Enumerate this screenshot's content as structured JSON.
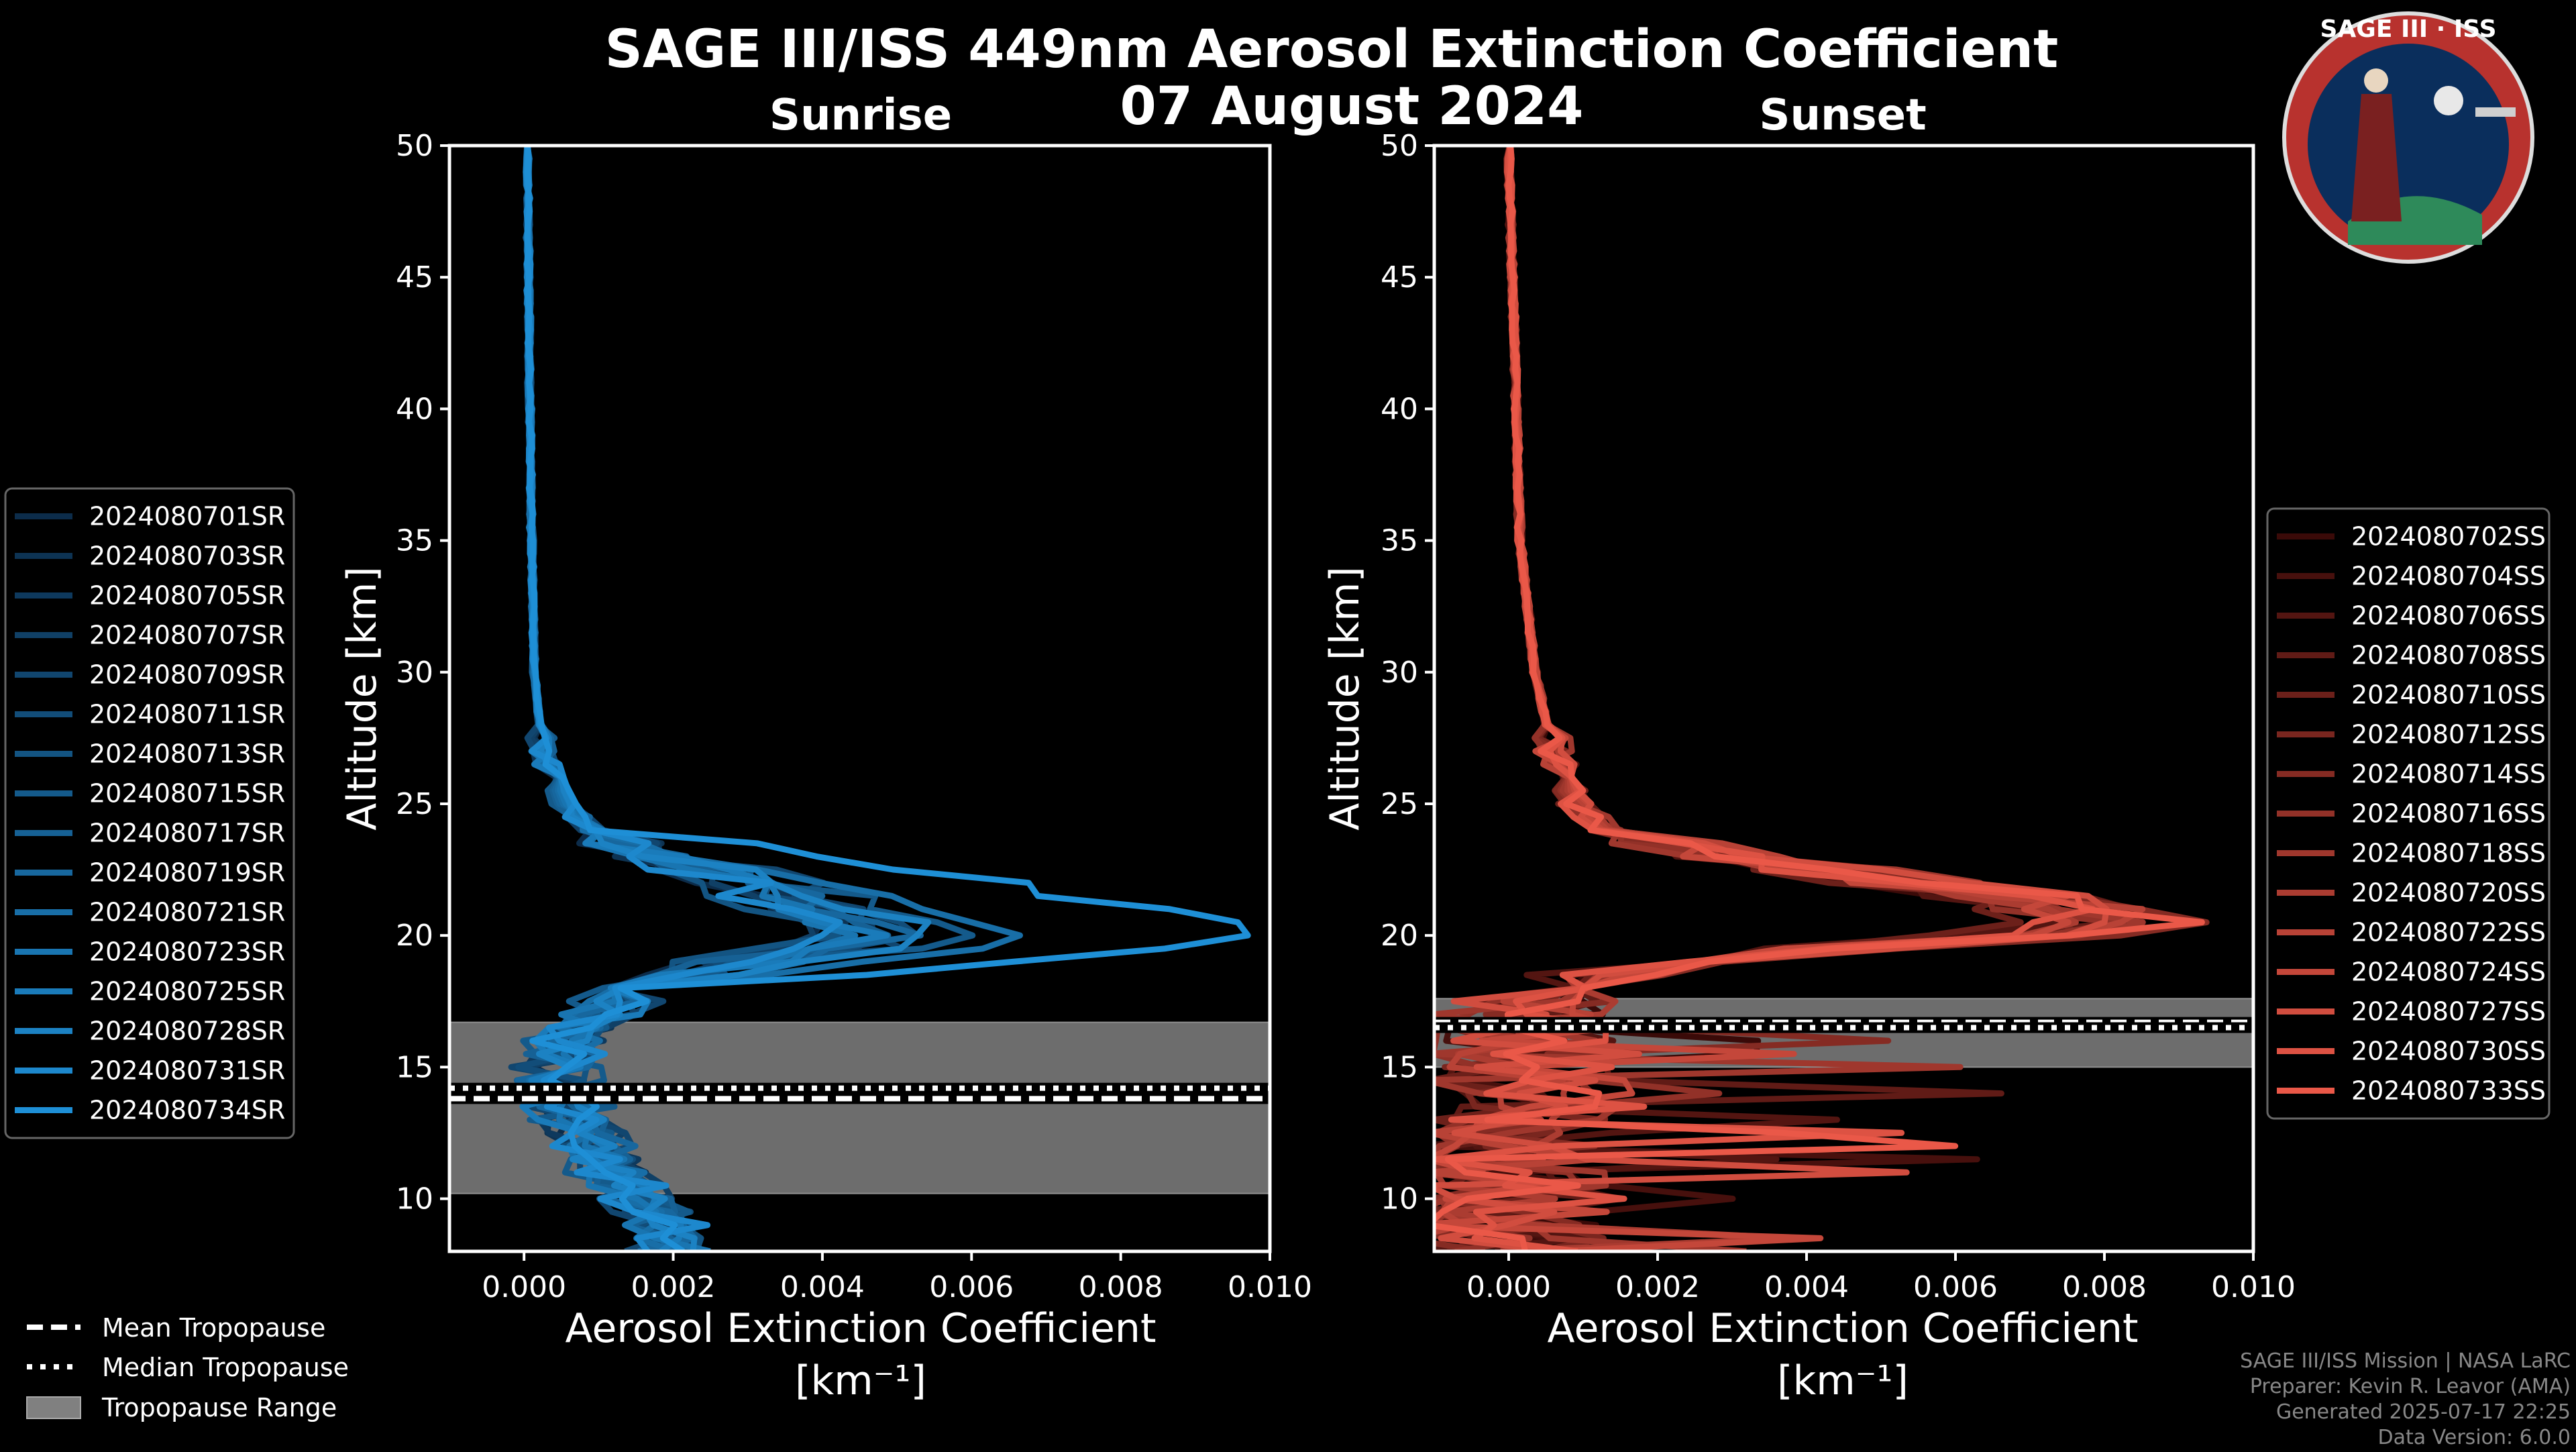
{
  "figure": {
    "title_line1": "SAGE III/ISS 449nm Aerosol Extinction Coefficient",
    "title_line2": "07 August 2024",
    "logo": {
      "text": "SAGE III · ISS"
    },
    "credits": [
      "SAGE III/ISS Mission | NASA LaRC",
      "Preparer: Kevin R. Leavor (AMA)",
      "Generated 2025-07-17 22:25",
      "Data Version: 6.0.0"
    ],
    "common_legend": [
      "Mean Tropopause",
      "Median Tropopause",
      "Tropopause Range"
    ]
  },
  "colors": {
    "sunrise_start": "#0c2c4a",
    "sunrise_end": "#1e8fd6",
    "sunset_start": "#3a0a08",
    "sunset_end": "#ea5848",
    "tropo_band": "#808080",
    "background": "#000000"
  },
  "chart_data": [
    {
      "type": "line",
      "title": "Sunrise",
      "xlabel": "Aerosol Extinction Coefficient",
      "xlabel_unit": "[km⁻¹]",
      "ylabel": "Altitude [km]",
      "xlim": [
        -0.001,
        0.01
      ],
      "ylim": [
        8,
        50
      ],
      "xticks": [
        0.0,
        0.002,
        0.004,
        0.006,
        0.008,
        0.01
      ],
      "xtick_labels": [
        "0.000",
        "0.002",
        "0.004",
        "0.006",
        "0.008",
        "0.010"
      ],
      "yticks": [
        10,
        15,
        20,
        25,
        30,
        35,
        40,
        45,
        50
      ],
      "tropopause": {
        "mean": 13.8,
        "median": 14.2,
        "range": [
          10.2,
          16.7
        ]
      },
      "base_profile": {
        "altitude": [
          50,
          45,
          40,
          35,
          30,
          27,
          25,
          24,
          23,
          22,
          21,
          20.5,
          20,
          19.5,
          19,
          18,
          17,
          16,
          15,
          14,
          13,
          12,
          11,
          10,
          9,
          8
        ],
        "extinction": [
          5e-05,
          6e-05,
          8e-05,
          0.0001,
          0.00014,
          0.00025,
          0.00055,
          0.0009,
          0.0018,
          0.0032,
          0.004,
          0.0046,
          0.0048,
          0.0044,
          0.003,
          0.0016,
          0.001,
          0.0006,
          0.0004,
          0.0005,
          0.0007,
          0.0009,
          0.0012,
          0.0016,
          0.0019,
          0.002
        ]
      },
      "series": [
        {
          "name": "2024080701SR",
          "scale": 0.85,
          "noise": 0.00045
        },
        {
          "name": "2024080703SR",
          "scale": 0.95,
          "noise": 0.0006
        },
        {
          "name": "2024080705SR",
          "scale": 1.05,
          "noise": 0.0005
        },
        {
          "name": "2024080707SR",
          "scale": 0.9,
          "noise": 0.00055
        },
        {
          "name": "2024080709SR",
          "scale": 1.1,
          "noise": 0.00065
        },
        {
          "name": "2024080711SR",
          "scale": 1.0,
          "noise": 0.0005
        },
        {
          "name": "2024080713SR",
          "scale": 0.8,
          "noise": 0.00045
        },
        {
          "name": "2024080715SR",
          "scale": 1.15,
          "noise": 0.0007
        },
        {
          "name": "2024080717SR",
          "scale": 0.95,
          "noise": 0.00055
        },
        {
          "name": "2024080719SR",
          "scale": 1.05,
          "noise": 0.0006
        },
        {
          "name": "2024080721SR",
          "scale": 1.35,
          "noise": 0.0005
        },
        {
          "name": "2024080723SR",
          "scale": 0.9,
          "noise": 0.00055
        },
        {
          "name": "2024080725SR",
          "scale": 1.0,
          "noise": 0.00065
        },
        {
          "name": "2024080728SR",
          "scale": 1.1,
          "noise": 0.00045
        },
        {
          "name": "2024080731SR",
          "scale": 0.85,
          "noise": 0.0006
        },
        {
          "name": "2024080734SR",
          "scale": 2.05,
          "noise": 0.0005
        }
      ]
    },
    {
      "type": "line",
      "title": "Sunset",
      "xlabel": "Aerosol Extinction Coefficient",
      "xlabel_unit": "[km⁻¹]",
      "ylabel": "Altitude [km]",
      "xlim": [
        -0.001,
        0.01
      ],
      "ylim": [
        8,
        50
      ],
      "xticks": [
        0.0,
        0.002,
        0.004,
        0.006,
        0.008,
        0.01
      ],
      "xtick_labels": [
        "0.000",
        "0.002",
        "0.004",
        "0.006",
        "0.008",
        "0.010"
      ],
      "yticks": [
        10,
        15,
        20,
        25,
        30,
        35,
        40,
        45,
        50
      ],
      "tropopause": {
        "mean": 16.7,
        "median": 16.5,
        "range": [
          15.0,
          17.6
        ]
      },
      "base_profile": {
        "altitude": [
          50,
          45,
          40,
          35,
          30,
          27,
          25,
          24,
          23,
          22,
          21.5,
          21,
          20.5,
          20,
          19.5,
          19,
          18.5,
          18,
          17,
          16,
          15,
          14,
          13,
          12,
          11,
          10,
          9,
          8
        ],
        "extinction": [
          0.0,
          5e-05,
          0.0001,
          0.00015,
          0.00035,
          0.0006,
          0.0009,
          0.0013,
          0.003,
          0.0055,
          0.0068,
          0.0075,
          0.008,
          0.007,
          0.0045,
          0.0025,
          0.0012,
          0.0006,
          0.0002,
          0.0001,
          0.0002,
          0.0003,
          0.0002,
          0.0001,
          0.0,
          0.0001,
          0.0,
          -0.0003
        ]
      },
      "series": [
        {
          "name": "2024080702SS",
          "scale": 0.9,
          "noise": 0.0007
        },
        {
          "name": "2024080704SS",
          "scale": 1.0,
          "noise": 0.0008
        },
        {
          "name": "2024080706SS",
          "scale": 0.95,
          "noise": 0.0009
        },
        {
          "name": "2024080708SS",
          "scale": 1.05,
          "noise": 0.00075
        },
        {
          "name": "2024080710SS",
          "scale": 0.92,
          "noise": 0.00085
        },
        {
          "name": "2024080712SS",
          "scale": 1.0,
          "noise": 0.0007
        },
        {
          "name": "2024080714SS",
          "scale": 1.08,
          "noise": 0.0008
        },
        {
          "name": "2024080716SS",
          "scale": 0.96,
          "noise": 0.00075
        },
        {
          "name": "2024080718SS",
          "scale": 1.02,
          "noise": 0.0009
        },
        {
          "name": "2024080720SS",
          "scale": 0.94,
          "noise": 0.0007
        },
        {
          "name": "2024080722SS",
          "scale": 1.04,
          "noise": 0.0008
        },
        {
          "name": "2024080724SS",
          "scale": 0.98,
          "noise": 0.00085
        },
        {
          "name": "2024080727SS",
          "scale": 1.06,
          "noise": 0.00075
        },
        {
          "name": "2024080730SS",
          "scale": 0.97,
          "noise": 0.0008
        },
        {
          "name": "2024080733SS",
          "scale": 1.09,
          "noise": 0.0007
        }
      ]
    }
  ]
}
